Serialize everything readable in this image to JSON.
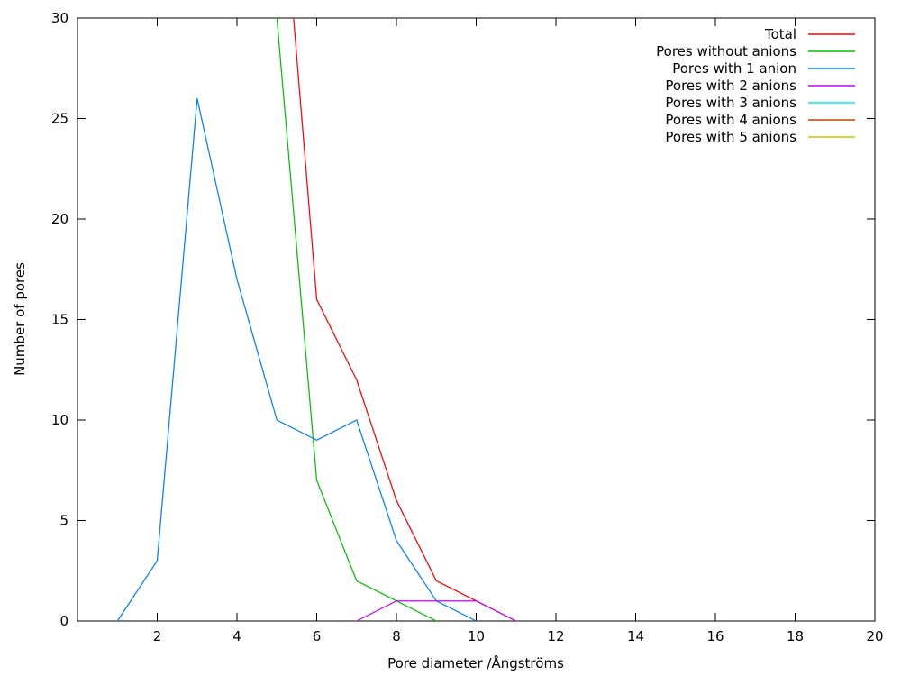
{
  "chart_data": {
    "type": "line",
    "title": "",
    "xlabel": "Pore diameter /Ångströms",
    "ylabel": "Number of pores",
    "xlim": [
      0,
      20
    ],
    "ylim": [
      0,
      30
    ],
    "xticks": [
      2,
      4,
      6,
      8,
      10,
      12,
      14,
      16,
      18,
      20
    ],
    "yticks": [
      0,
      5,
      10,
      15,
      20,
      25,
      30
    ],
    "grid": false,
    "background": "#ffffff",
    "axis_color": "#000000",
    "legend": {
      "position": "top-right-inside",
      "entries": [
        "Total",
        "Pores without anions",
        "Pores with 1 anion",
        "Pores with 2 anions",
        "Pores with 3 anions",
        "Pores with 4 anions",
        "Pores with 5 anions"
      ]
    },
    "series": [
      {
        "name": "Total",
        "color": "#ff0000",
        "clipped_at_top": true,
        "points": [
          [
            5.42,
            30
          ],
          [
            6,
            16
          ],
          [
            7,
            12
          ],
          [
            8,
            6
          ],
          [
            9,
            2
          ],
          [
            10,
            1
          ],
          [
            11,
            0
          ]
        ]
      },
      {
        "name": "Pores without anions",
        "color": "#00c000",
        "clipped_at_top": true,
        "points": [
          [
            5,
            30
          ],
          [
            6,
            7
          ],
          [
            7,
            2
          ],
          [
            8,
            1
          ],
          [
            9,
            0
          ]
        ]
      },
      {
        "name": "Pores with 1 anion",
        "color": "#0080ff",
        "clipped_at_top": false,
        "points": [
          [
            1,
            0
          ],
          [
            2,
            3
          ],
          [
            3,
            26
          ],
          [
            4,
            17
          ],
          [
            5,
            10
          ],
          [
            6,
            9
          ],
          [
            7,
            10
          ],
          [
            8,
            4
          ],
          [
            9,
            1
          ],
          [
            10,
            0
          ]
        ]
      },
      {
        "name": "Pores with 2 anions",
        "color": "#c000ff",
        "clipped_at_top": false,
        "points": [
          [
            7,
            0
          ],
          [
            8,
            1
          ],
          [
            9,
            1
          ],
          [
            10,
            1
          ],
          [
            11,
            0
          ]
        ]
      },
      {
        "name": "Pores with 3 anions",
        "color": "#00eeee",
        "clipped_at_top": false,
        "points": []
      },
      {
        "name": "Pores with 4 anions",
        "color": "#c04000",
        "clipped_at_top": false,
        "points": []
      },
      {
        "name": "Pores with 5 anions",
        "color": "#c8c800",
        "clipped_at_top": false,
        "points": []
      }
    ]
  }
}
